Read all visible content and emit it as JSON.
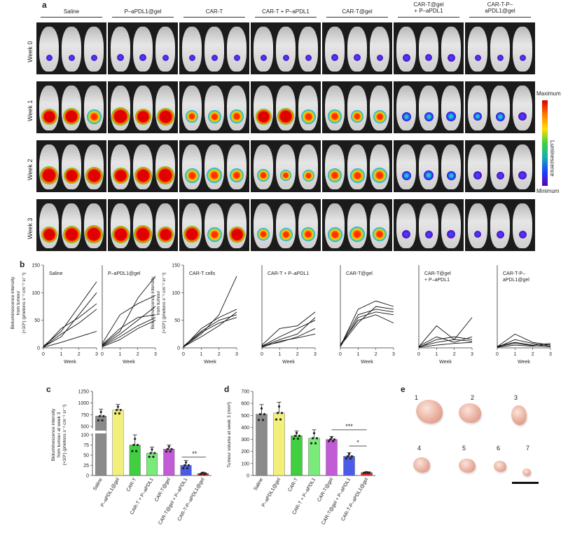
{
  "panel_letters": {
    "a": "a",
    "b": "b",
    "c": "c",
    "d": "d",
    "e": "e"
  },
  "groups": [
    "Saline",
    "P–aPDL1@gel",
    "CAR-T",
    "CAR-T + P–aPDL1",
    "CAR-T@gel",
    "CAR-T@gel\n+ P–aPDL1",
    "CAR-T-P–\naPDL1@gel"
  ],
  "weeks": [
    "Week 0",
    "Week 1",
    "Week 2",
    "Week 3"
  ],
  "colorbar": {
    "max": "Maximum",
    "min": "Minimum",
    "label": "Luminescence"
  },
  "panel_b": {
    "ylabel_left": "Bioluminescence intensity\nfrom tumour\n(×10⁶) (photons s⁻¹ cm⁻² sr⁻¹)",
    "ylabel_right": "Bioluminescence intensity\nfrom tumour\n(×10⁶) (photons s⁻¹ cm⁻² sr⁻¹)",
    "xlabel": "Week",
    "subplot_titles": [
      "Saline",
      "P–aPDL1@gel",
      "CAR-T cells",
      "CAR-T + P–aPDL1",
      "CAR-T@gel",
      "CAR-T@gel\n+ P–aPDL1",
      "CAR-T-P–\naPDL1@gel"
    ]
  },
  "panel_c": {
    "ylabel": "Bioluminescence intensity\nfrom tumour at week 3\n(×10⁶) (photons s⁻¹ cm⁻² sr⁻¹)",
    "sig": "**"
  },
  "panel_d": {
    "ylabel": "Tumour volume at week 3 (mm³)",
    "sig": [
      "***",
      "*"
    ]
  },
  "panel_e": {
    "numbers": [
      "1",
      "2",
      "3",
      "4",
      "5",
      "6",
      "7"
    ]
  },
  "bar_categories": [
    "Saline",
    "P–aPDL1@gel",
    "CAR-T",
    "CAR-T + P–aPDL1",
    "CAR-T@gel",
    "CAR-T@gel + P–aPDL1",
    "CAR-T-P–aPDL1@gel"
  ],
  "bar_colors": [
    "#8a8a8a",
    "#f2f07a",
    "#3fcf3f",
    "#7aea7a",
    "#c15cd6",
    "#4a5be8",
    "#e02828"
  ],
  "chart_data": [
    {
      "type": "line",
      "title": "Saline",
      "x": [
        0,
        1,
        2,
        3
      ],
      "xlabel": "Week",
      "ylim": [
        0,
        150
      ],
      "series": [
        {
          "values": [
            2,
            20,
            60,
            100
          ]
        },
        {
          "values": [
            3,
            30,
            75,
            120
          ]
        },
        {
          "values": [
            1,
            35,
            55,
            80
          ]
        },
        {
          "values": [
            2,
            25,
            45,
            70
          ]
        },
        {
          "values": [
            1,
            10,
            20,
            30
          ]
        }
      ]
    },
    {
      "type": "line",
      "title": "P–aPDL1@gel",
      "x": [
        0,
        1,
        2,
        3
      ],
      "xlabel": "Week",
      "ylim": [
        0,
        150
      ],
      "series": [
        {
          "values": [
            5,
            30,
            90,
            130
          ]
        },
        {
          "values": [
            8,
            60,
            80,
            95
          ]
        },
        {
          "values": [
            3,
            20,
            40,
            55
          ]
        },
        {
          "values": [
            4,
            25,
            50,
            75
          ]
        },
        {
          "values": [
            6,
            35,
            55,
            60
          ]
        },
        {
          "values": [
            2,
            15,
            35,
            50
          ]
        }
      ]
    },
    {
      "type": "line",
      "title": "CAR-T cells",
      "x": [
        0,
        1,
        2,
        3
      ],
      "xlabel": "Week",
      "ylim": [
        0,
        150
      ],
      "series": [
        {
          "values": [
            2,
            25,
            60,
            130
          ]
        },
        {
          "values": [
            1,
            35,
            55,
            70
          ]
        },
        {
          "values": [
            3,
            30,
            50,
            60
          ]
        },
        {
          "values": [
            2,
            20,
            40,
            65
          ]
        },
        {
          "values": [
            1,
            28,
            45,
            55
          ]
        }
      ]
    },
    {
      "type": "line",
      "title": "CAR-T + P–aPDL1",
      "x": [
        0,
        1,
        2,
        3
      ],
      "xlabel": "Week",
      "ylim": [
        0,
        150
      ],
      "series": [
        {
          "values": [
            5,
            35,
            40,
            65
          ]
        },
        {
          "values": [
            3,
            20,
            35,
            50
          ]
        },
        {
          "values": [
            2,
            15,
            25,
            55
          ]
        },
        {
          "values": [
            4,
            10,
            20,
            35
          ]
        },
        {
          "values": [
            1,
            12,
            18,
            25
          ]
        }
      ]
    },
    {
      "type": "line",
      "title": "CAR-T@gel",
      "x": [
        0,
        1,
        2,
        3
      ],
      "xlabel": "Week",
      "ylim": [
        0,
        150
      ],
      "series": [
        {
          "values": [
            3,
            70,
            85,
            75
          ]
        },
        {
          "values": [
            5,
            60,
            70,
            65
          ]
        },
        {
          "values": [
            4,
            45,
            75,
            70
          ]
        },
        {
          "values": [
            2,
            55,
            65,
            60
          ]
        },
        {
          "values": [
            6,
            50,
            60,
            45
          ]
        }
      ]
    },
    {
      "type": "line",
      "title": "CAR-T@gel\n+ P–aPDL1",
      "x": [
        0,
        1,
        2,
        3
      ],
      "xlabel": "Week",
      "ylim": [
        0,
        150
      ],
      "series": [
        {
          "values": [
            2,
            40,
            15,
            55
          ]
        },
        {
          "values": [
            3,
            20,
            10,
            20
          ]
        },
        {
          "values": [
            1,
            15,
            20,
            15
          ]
        },
        {
          "values": [
            2,
            10,
            15,
            12
          ]
        },
        {
          "values": [
            1,
            5,
            8,
            10
          ]
        }
      ]
    },
    {
      "type": "line",
      "title": "CAR-T-P–\naPDL1@gel",
      "x": [
        0,
        1,
        2,
        3
      ],
      "xlabel": "Week",
      "ylim": [
        0,
        150
      ],
      "series": [
        {
          "values": [
            2,
            25,
            10,
            5
          ]
        },
        {
          "values": [
            1,
            15,
            8,
            3
          ]
        },
        {
          "values": [
            3,
            10,
            5,
            8
          ]
        },
        {
          "values": [
            2,
            8,
            4,
            2
          ]
        },
        {
          "values": [
            1,
            5,
            3,
            6
          ]
        }
      ]
    },
    {
      "type": "bar",
      "title": "",
      "categories": [
        "Saline",
        "P–aPDL1@gel",
        "CAR-T",
        "CAR-T + P–aPDL1",
        "CAR-T@gel",
        "CAR-T@gel + P–aPDL1",
        "CAR-T-P–aPDL1@gel"
      ],
      "values": [
        720,
        850,
        75,
        55,
        65,
        25,
        5
      ],
      "errors": [
        150,
        120,
        25,
        15,
        10,
        12,
        3
      ],
      "ylim": [
        0,
        1250
      ],
      "yticks": [
        0,
        25,
        50,
        75,
        100,
        500,
        750,
        1000,
        1250
      ],
      "broken_axis": true
    },
    {
      "type": "bar",
      "title": "",
      "categories": [
        "Saline",
        "P–aPDL1@gel",
        "CAR-T",
        "CAR-T + P–aPDL1",
        "CAR-T@gel",
        "CAR-T@gel + P–aPDL1",
        "CAR-T-P–aPDL1@gel"
      ],
      "values": [
        510,
        520,
        330,
        310,
        300,
        160,
        25
      ],
      "errors": [
        80,
        90,
        40,
        70,
        25,
        30,
        5
      ],
      "ylim": [
        0,
        700
      ],
      "yticks": [
        0,
        100,
        200,
        300,
        400,
        500,
        600,
        700
      ]
    }
  ]
}
